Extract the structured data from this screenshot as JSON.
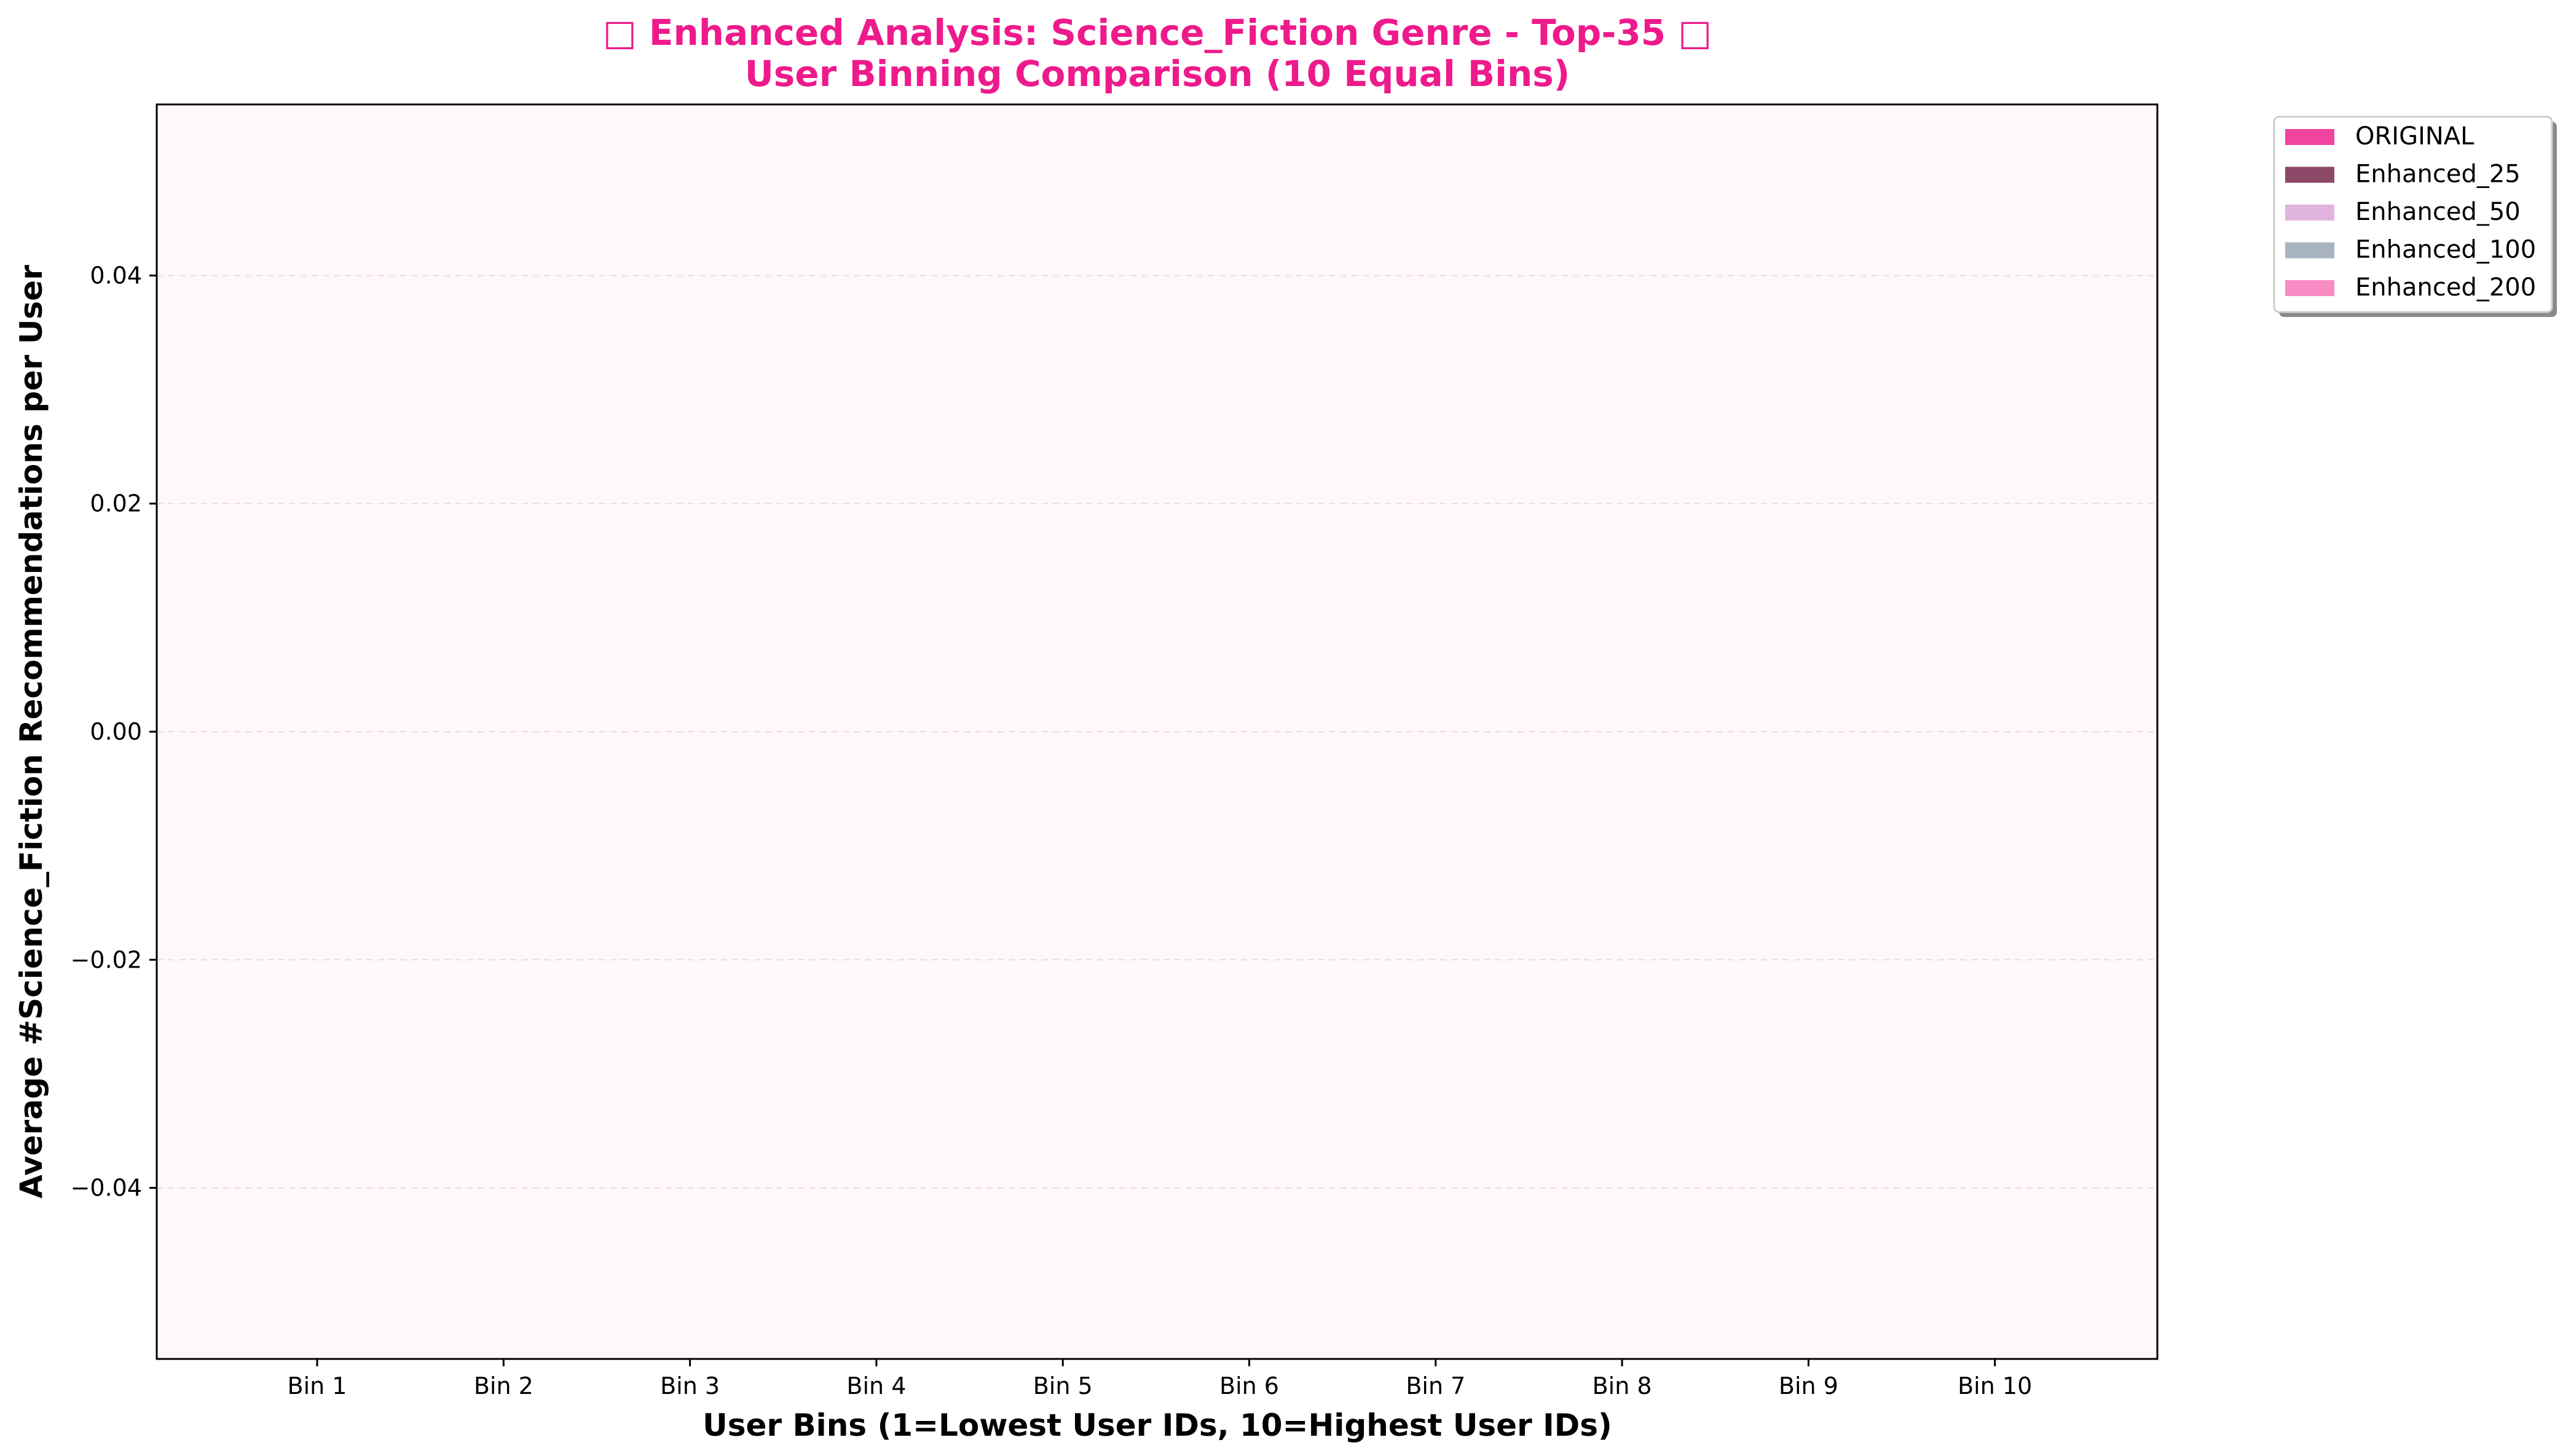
{
  "chart_data": {
    "type": "bar",
    "title": "□ Enhanced Analysis: Science_Fiction Genre - Top-35 □",
    "subtitle": "User Binning Comparison (10 Equal Bins)",
    "xlabel": "User Bins (1=Lowest User IDs, 10=Highest User IDs)",
    "ylabel": "Average #Science_Fiction Recommendations per User",
    "categories": [
      "Bin 1",
      "Bin 2",
      "Bin 3",
      "Bin 4",
      "Bin 5",
      "Bin 6",
      "Bin 7",
      "Bin 8",
      "Bin 9",
      "Bin 10"
    ],
    "ylim": [
      -0.055,
      0.055
    ],
    "yticks": [
      -0.04,
      -0.02,
      0.0,
      0.02,
      0.04
    ],
    "ytick_labels": [
      "−0.04",
      "−0.02",
      "0.00",
      "0.02",
      "0.04"
    ],
    "grid": "y-dashed",
    "legend_position": "outside-top-right",
    "series": [
      {
        "name": "ORIGINAL",
        "color": "#f0449e",
        "values": [
          0,
          0,
          0,
          0,
          0,
          0,
          0,
          0,
          0,
          0
        ]
      },
      {
        "name": "Enhanced_25",
        "color": "#8e4868",
        "values": [
          0,
          0,
          0,
          0,
          0,
          0,
          0,
          0,
          0,
          0
        ]
      },
      {
        "name": "Enhanced_50",
        "color": "#e0b4de",
        "values": [
          0,
          0,
          0,
          0,
          0,
          0,
          0,
          0,
          0,
          0
        ]
      },
      {
        "name": "Enhanced_100",
        "color": "#a9b4c2",
        "values": [
          0,
          0,
          0,
          0,
          0,
          0,
          0,
          0,
          0,
          0
        ]
      },
      {
        "name": "Enhanced_200",
        "color": "#f98bc4",
        "values": [
          0,
          0,
          0,
          0,
          0,
          0,
          0,
          0,
          0,
          0
        ]
      }
    ],
    "colors": {
      "title": "#ee1a8c",
      "plot_background": "#fef8fc",
      "grid": "#f3d6e6"
    }
  }
}
